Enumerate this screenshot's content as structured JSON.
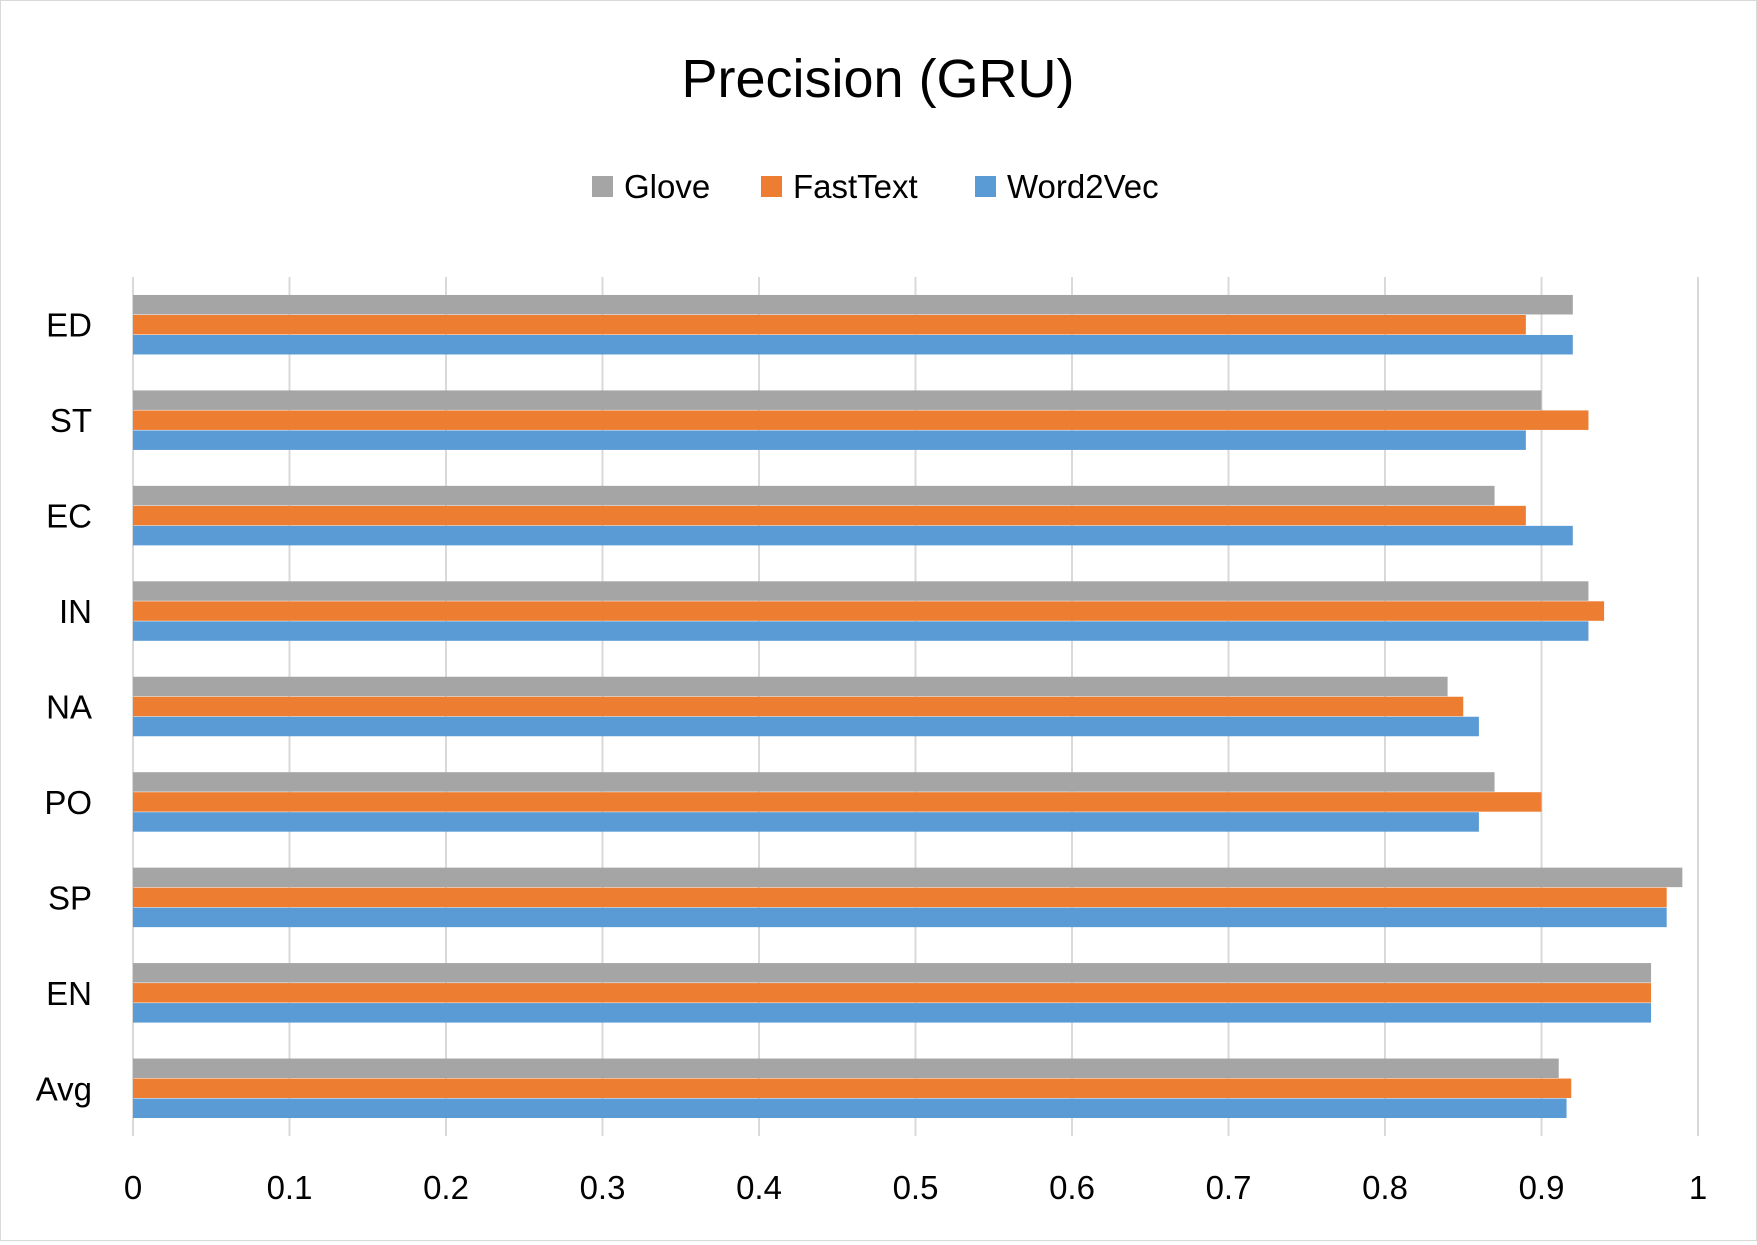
{
  "chart_data": {
    "type": "bar",
    "orientation": "horizontal",
    "title": "Precision (GRU)",
    "xlabel": "",
    "ylabel": "",
    "categories": [
      "ED",
      "ST",
      "EC",
      "IN",
      "NA",
      "PO",
      "SP",
      "EN",
      "Avg"
    ],
    "series": [
      {
        "name": "Glove",
        "color": "#a5a5a5",
        "values": [
          0.92,
          0.9,
          0.87,
          0.93,
          0.84,
          0.87,
          0.99,
          0.97,
          0.911
        ]
      },
      {
        "name": "FastText",
        "color": "#ed7d31",
        "values": [
          0.89,
          0.93,
          0.89,
          0.94,
          0.85,
          0.9,
          0.98,
          0.97,
          0.919
        ]
      },
      {
        "name": "Word2Vec",
        "color": "#5b9bd5",
        "values": [
          0.92,
          0.89,
          0.92,
          0.93,
          0.86,
          0.86,
          0.98,
          0.97,
          0.916
        ]
      }
    ],
    "xlim": [
      0,
      1
    ],
    "xticks": [
      "0",
      "0.1",
      "0.2",
      "0.3",
      "0.4",
      "0.5",
      "0.6",
      "0.7",
      "0.8",
      "0.9",
      "1"
    ],
    "grid": "vertical",
    "legend": "top-center"
  }
}
